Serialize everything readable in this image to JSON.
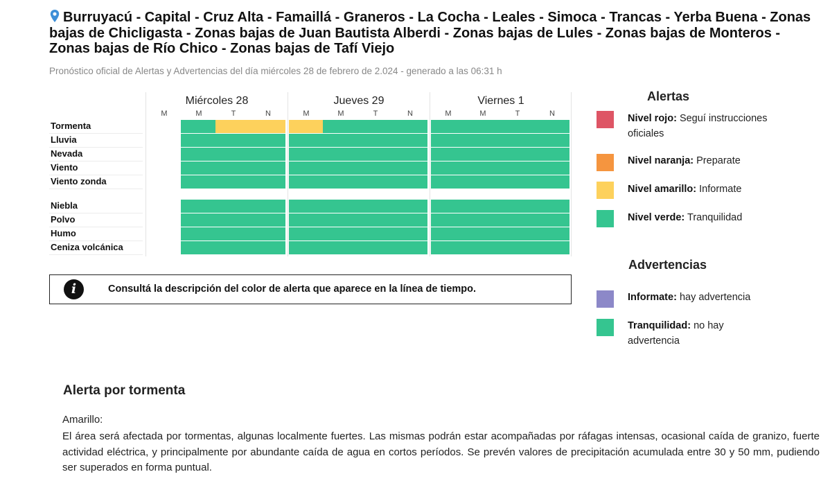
{
  "header": {
    "title": "Burruyacú - Capital - Cruz Alta - Famaillá - Graneros - La Cocha - Leales - Simoca - Trancas - Yerba Buena - Zonas bajas de Chicligasta - Zonas bajas de Juan Bautista Alberdi - Zonas bajas de Lules - Zonas bajas de Monteros - Zonas bajas de Río Chico - Zonas bajas de Tafí Viejo",
    "icon": "location-pin-icon",
    "subtitle": "Pronóstico oficial de Alertas y Advertencias del día miércoles 28 de febrero de 2.024 - generado a las 06:31 h"
  },
  "timeline": {
    "days": [
      {
        "label": "Miércoles 28",
        "slots": [
          "M",
          "M",
          "T",
          "N"
        ]
      },
      {
        "label": "Jueves 29",
        "slots": [
          "M",
          "M",
          "T",
          "N"
        ]
      },
      {
        "label": "Viernes 1",
        "slots": [
          "M",
          "M",
          "T",
          "N"
        ]
      }
    ],
    "rows": [
      {
        "label": "Tormenta",
        "levels": [
          "none",
          "verde",
          "amarillo",
          "amarillo",
          "amarillo",
          "verde",
          "verde",
          "verde",
          "verde",
          "verde",
          "verde",
          "verde"
        ]
      },
      {
        "label": "Lluvia",
        "levels": [
          "none",
          "verde",
          "verde",
          "verde",
          "verde",
          "verde",
          "verde",
          "verde",
          "verde",
          "verde",
          "verde",
          "verde"
        ]
      },
      {
        "label": "Nevada",
        "levels": [
          "none",
          "verde",
          "verde",
          "verde",
          "verde",
          "verde",
          "verde",
          "verde",
          "verde",
          "verde",
          "verde",
          "verde"
        ]
      },
      {
        "label": "Viento",
        "levels": [
          "none",
          "verde",
          "verde",
          "verde",
          "verde",
          "verde",
          "verde",
          "verde",
          "verde",
          "verde",
          "verde",
          "verde"
        ]
      },
      {
        "label": "Viento zonda",
        "levels": [
          "none",
          "verde",
          "verde",
          "verde",
          "verde",
          "verde",
          "verde",
          "verde",
          "verde",
          "verde",
          "verde",
          "verde"
        ]
      },
      {
        "label": "Niebla",
        "levels": [
          "none",
          "verde",
          "verde",
          "verde",
          "verde",
          "verde",
          "verde",
          "verde",
          "verde",
          "verde",
          "verde",
          "verde"
        ]
      },
      {
        "label": "Polvo",
        "levels": [
          "none",
          "verde",
          "verde",
          "verde",
          "verde",
          "verde",
          "verde",
          "verde",
          "verde",
          "verde",
          "verde",
          "verde"
        ]
      },
      {
        "label": "Humo",
        "levels": [
          "none",
          "verde",
          "verde",
          "verde",
          "verde",
          "verde",
          "verde",
          "verde",
          "verde",
          "verde",
          "verde",
          "verde"
        ]
      },
      {
        "label": "Ceniza volcánica",
        "levels": [
          "none",
          "verde",
          "verde",
          "verde",
          "verde",
          "verde",
          "verde",
          "verde",
          "verde",
          "verde",
          "verde",
          "verde"
        ]
      }
    ]
  },
  "info": {
    "icon": "info-icon",
    "text": "Consultá la descripción del color de alerta que aparece en la línea de tiempo."
  },
  "legend": {
    "alerts_title": "Alertas",
    "alerts": [
      {
        "bold": "Nivel rojo:",
        "text": "Seguí instrucciones oficiales",
        "color": "#de5565"
      },
      {
        "bold": "Nivel naranja:",
        "text": "Preparate",
        "color": "#f5953f"
      },
      {
        "bold": "Nivel amarillo:",
        "text": "Informate",
        "color": "#fdd15c"
      },
      {
        "bold": "Nivel verde:",
        "text": "Tranquilidad",
        "color": "#35c590"
      }
    ],
    "warnings_title": "Advertencias",
    "warnings": [
      {
        "bold": "Informate:",
        "text": "hay advertencia",
        "color": "#8c88c8"
      },
      {
        "bold": "Tranquilidad:",
        "text": "no hay advertencia",
        "color": "#35c590"
      }
    ]
  },
  "description": {
    "title": "Alerta por tormenta",
    "level": "Amarillo:",
    "body": "El área será afectada por tormentas, algunas localmente fuertes. Las mismas podrán estar acompañadas por ráfagas intensas, ocasional caída de granizo, fuerte actividad eléctrica, y principalmente por abundante caída de agua en cortos períodos. Se prevén valores de precipitación acumulada entre 30 y 50 mm, pudiendo ser superados en forma puntual."
  }
}
